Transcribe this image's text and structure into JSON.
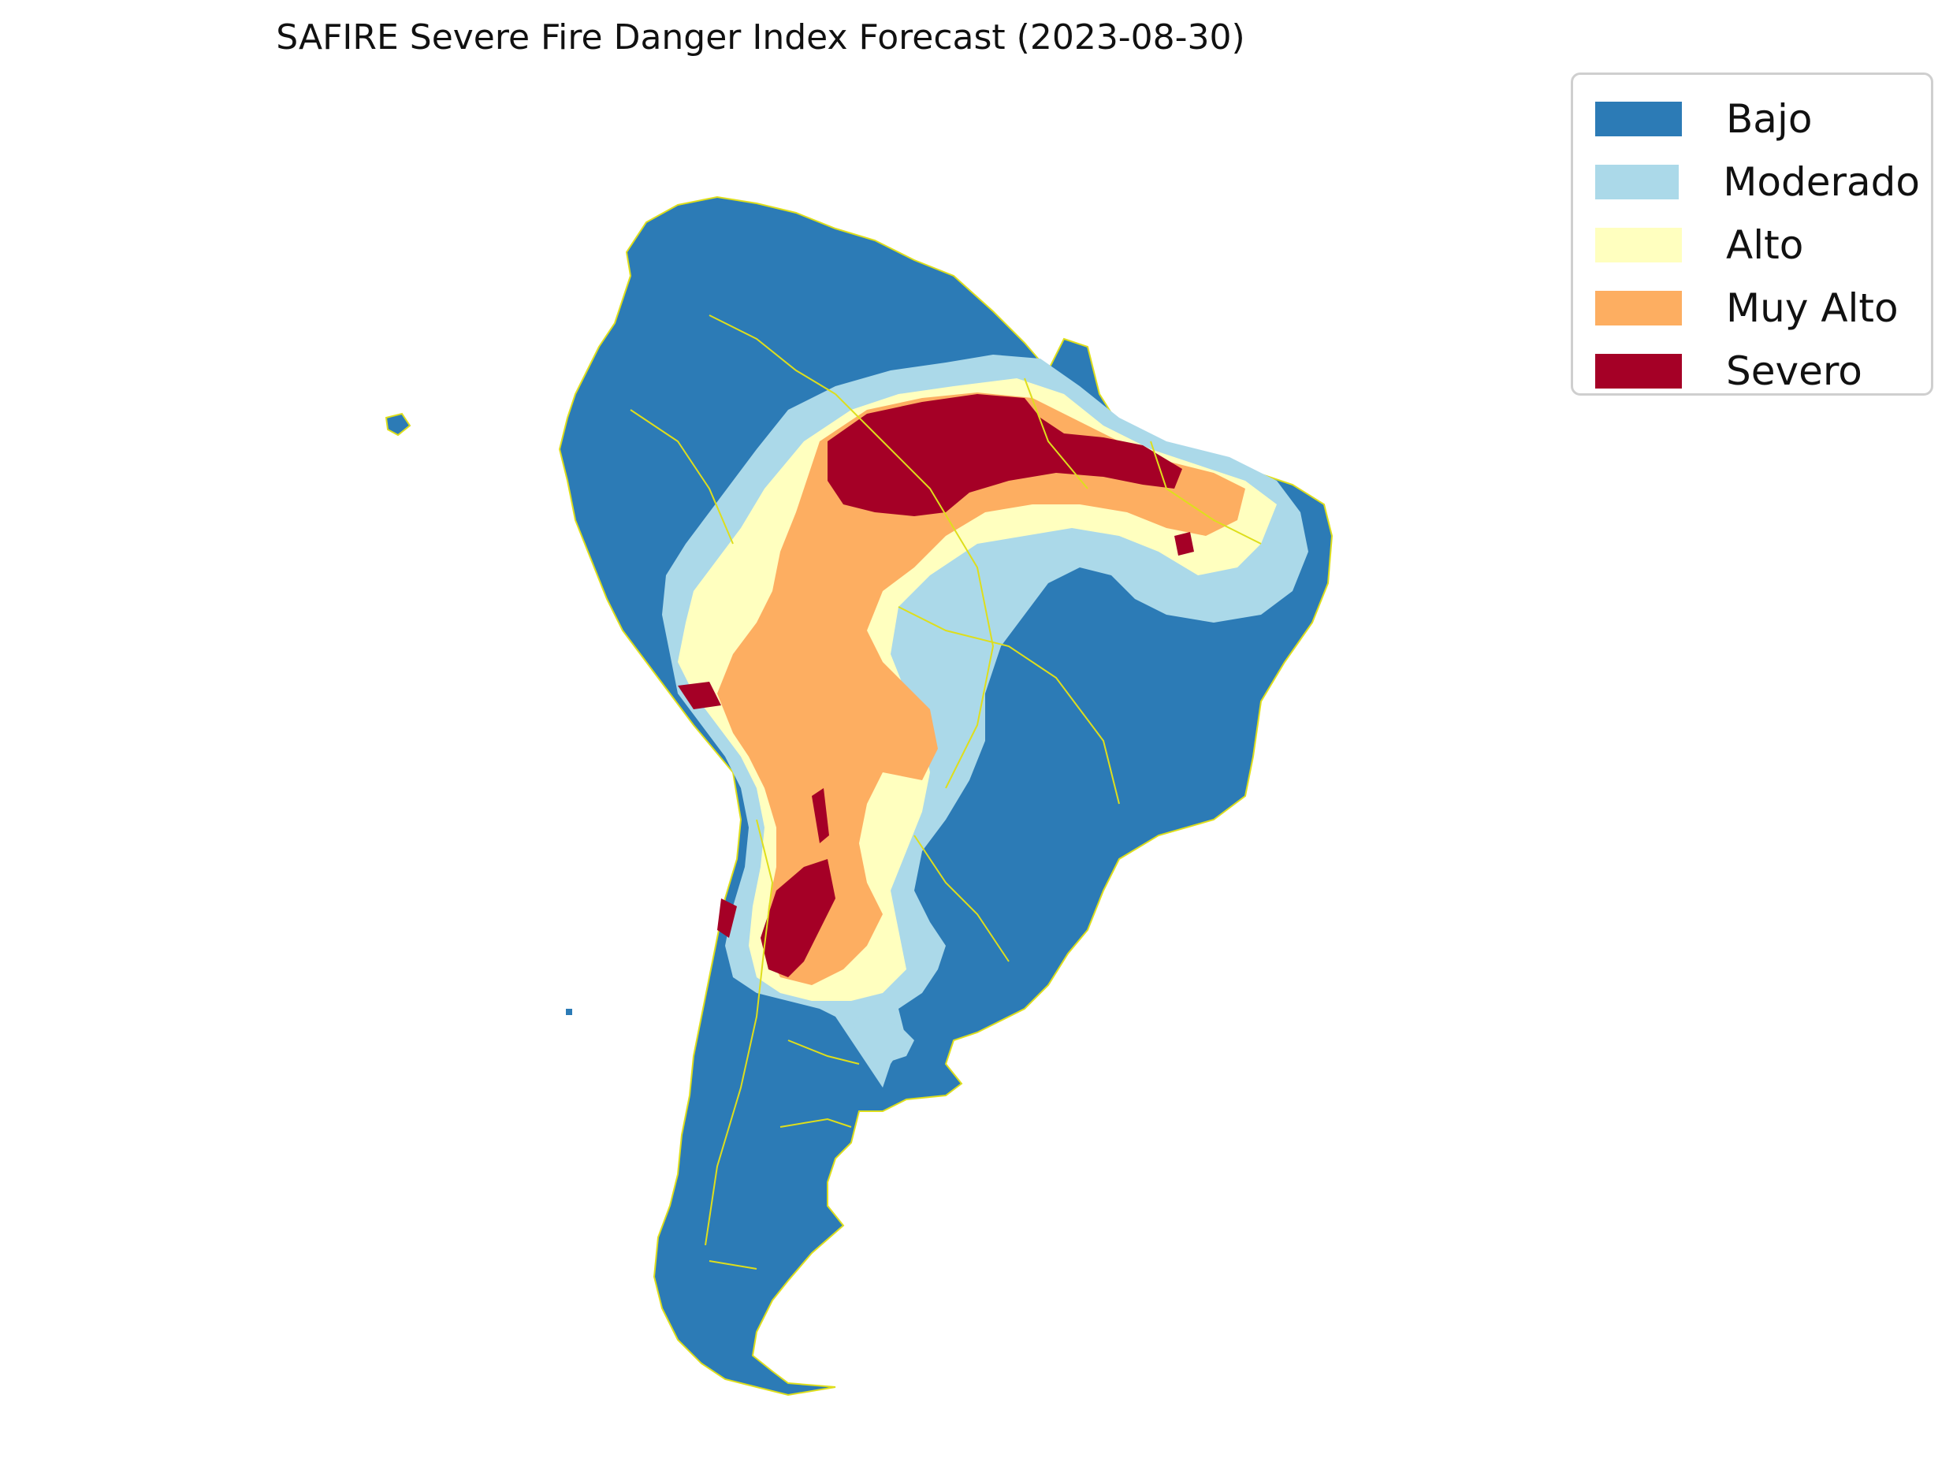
{
  "map": {
    "title": "SAFIRE Severe Fire Danger Index Forecast (2023-08-30)",
    "region": "South America",
    "border_color": "#dede1c",
    "legend": [
      {
        "label": "Bajo",
        "color": "#2c7bb6"
      },
      {
        "label": "Moderado",
        "color": "#abd9e9"
      },
      {
        "label": "Alto",
        "color": "#ffffbf"
      },
      {
        "label": "Muy Alto",
        "color": "#fdae61"
      },
      {
        "label": "Severo",
        "color": "#a50026"
      }
    ]
  }
}
